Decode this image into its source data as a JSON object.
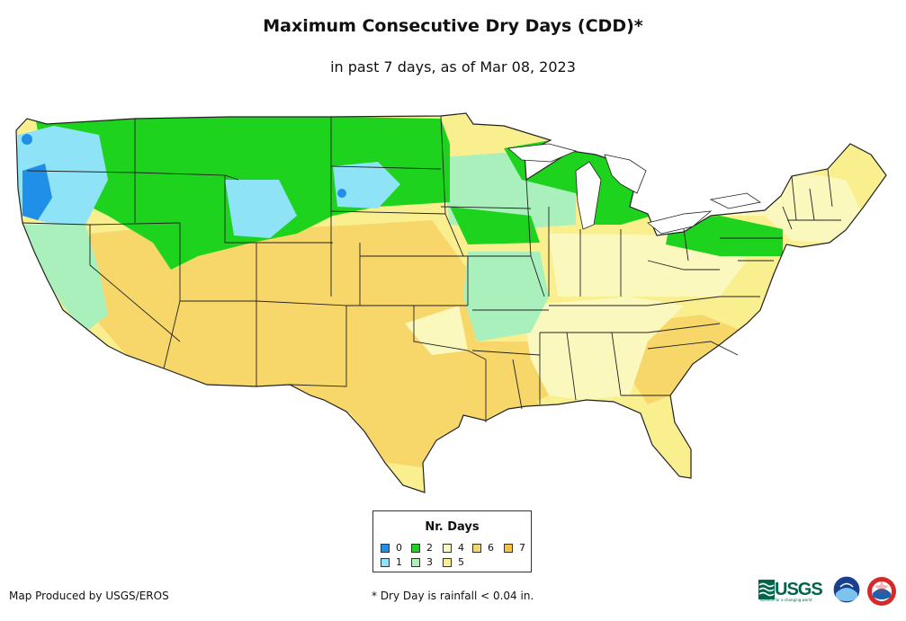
{
  "title": "Maximum Consecutive Dry Days (CDD)*",
  "subtitle": "in past 7 days, as of Mar 08, 2023",
  "legend": {
    "title": "Nr. Days",
    "items": [
      {
        "label": "0",
        "color": "#1f8fe8"
      },
      {
        "label": "1",
        "color": "#8fe3f7"
      },
      {
        "label": "2",
        "color": "#1ed31e"
      },
      {
        "label": "3",
        "color": "#a9f0bd"
      },
      {
        "label": "4",
        "color": "#fbf8be"
      },
      {
        "label": "5",
        "color": "#f9ef8f"
      },
      {
        "label": "6",
        "color": "#f8d76a"
      },
      {
        "label": "7",
        "color": "#f5c443"
      }
    ]
  },
  "footer": {
    "producer": "Map Produced by USGS/EROS",
    "note": "* Dry Day is rainfall < 0.04 in."
  },
  "logos": {
    "usgs": "USGS",
    "usgs_tagline": "science for a changing world",
    "noaa": "noaa-logo",
    "nws": "nws-logo"
  }
}
